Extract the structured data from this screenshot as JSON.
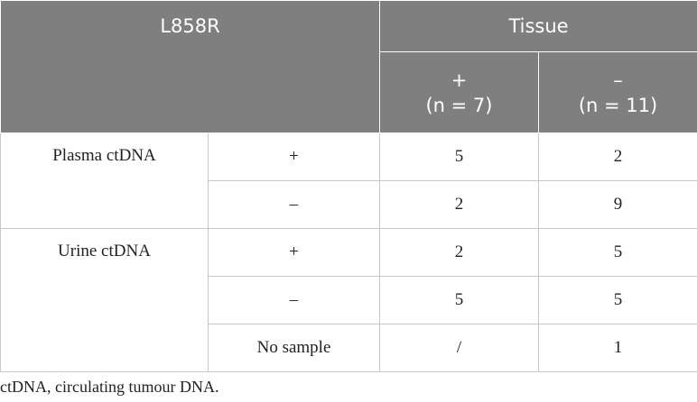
{
  "header": {
    "title": "L858R",
    "group": "Tissue",
    "columns": [
      {
        "sign": "+",
        "n": "(n = 7)"
      },
      {
        "sign": "–",
        "n": "(n = 11)"
      }
    ]
  },
  "groups": [
    {
      "label": "Plasma ctDNA",
      "rows": [
        {
          "marker": "+",
          "values": [
            5,
            2
          ]
        },
        {
          "marker": "–",
          "values": [
            2,
            9
          ]
        }
      ]
    },
    {
      "label": "Urine ctDNA",
      "rows": [
        {
          "marker": "+",
          "values": [
            2,
            5
          ]
        },
        {
          "marker": "–",
          "values": [
            5,
            5
          ]
        },
        {
          "marker": "No sample",
          "values": [
            "/",
            1
          ]
        }
      ]
    }
  ],
  "footnote": "ctDNA, circulating tumour DNA."
}
